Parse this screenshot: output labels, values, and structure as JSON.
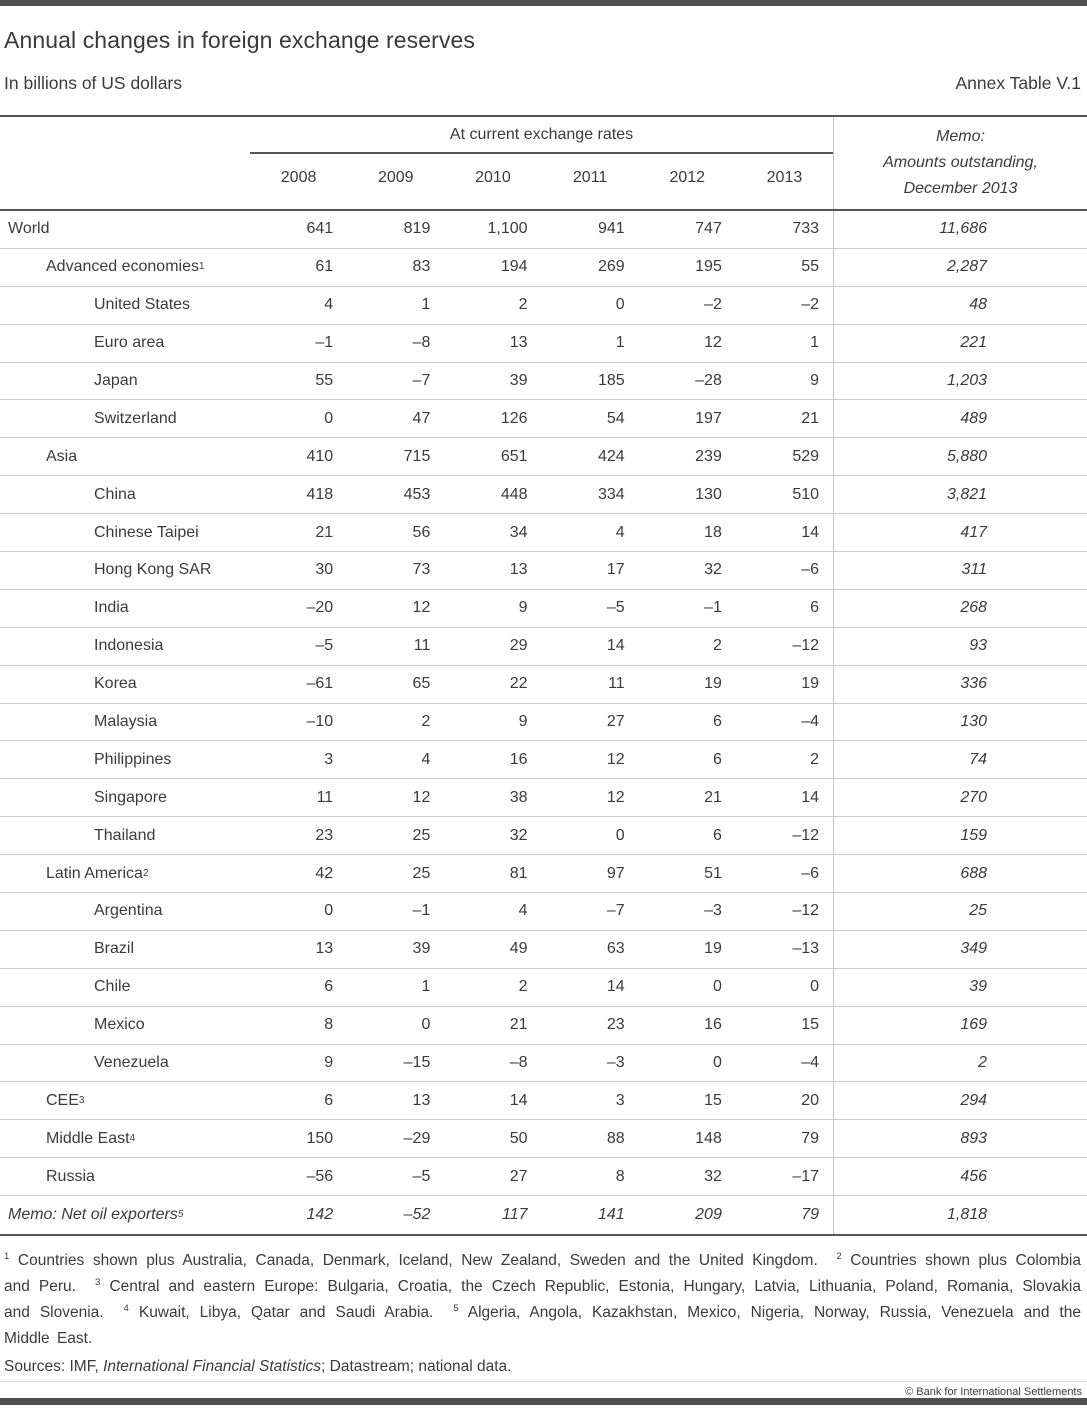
{
  "page": {
    "title": "Annual changes in foreign exchange reserves",
    "subtitle": "In billions of US dollars",
    "table_ref": "Annex Table V.1",
    "copyright": "© Bank for International Settlements"
  },
  "colors": {
    "text": "#3b3b3b",
    "rule_dark": "#565656",
    "rule_light": "#cbcbcb",
    "divider": "#c3c3c3",
    "bar": "#4f4f4f"
  },
  "table": {
    "spanner": "At current exchange rates",
    "years": [
      "2008",
      "2009",
      "2010",
      "2011",
      "2012",
      "2013"
    ],
    "memo_header": [
      "Memo:",
      "Amounts outstanding,",
      "December 2013"
    ],
    "rows": [
      {
        "label": "World",
        "sup": "",
        "indent": 0,
        "italic": false,
        "values": [
          "641",
          "819",
          "1,100",
          "941",
          "747",
          "733"
        ],
        "memo": "11,686"
      },
      {
        "label": "Advanced economies",
        "sup": "1",
        "indent": 1,
        "italic": false,
        "values": [
          "61",
          "83",
          "194",
          "269",
          "195",
          "55"
        ],
        "memo": "2,287"
      },
      {
        "label": "United States",
        "sup": "",
        "indent": 2,
        "italic": false,
        "values": [
          "4",
          "1",
          "2",
          "0",
          "–2",
          "–2"
        ],
        "memo": "48"
      },
      {
        "label": "Euro area",
        "sup": "",
        "indent": 2,
        "italic": false,
        "values": [
          "–1",
          "–8",
          "13",
          "1",
          "12",
          "1"
        ],
        "memo": "221"
      },
      {
        "label": "Japan",
        "sup": "",
        "indent": 2,
        "italic": false,
        "values": [
          "55",
          "–7",
          "39",
          "185",
          "–28",
          "9"
        ],
        "memo": "1,203"
      },
      {
        "label": "Switzerland",
        "sup": "",
        "indent": 2,
        "italic": false,
        "values": [
          "0",
          "47",
          "126",
          "54",
          "197",
          "21"
        ],
        "memo": "489"
      },
      {
        "label": "Asia",
        "sup": "",
        "indent": 1,
        "italic": false,
        "values": [
          "410",
          "715",
          "651",
          "424",
          "239",
          "529"
        ],
        "memo": "5,880"
      },
      {
        "label": "China",
        "sup": "",
        "indent": 2,
        "italic": false,
        "values": [
          "418",
          "453",
          "448",
          "334",
          "130",
          "510"
        ],
        "memo": "3,821"
      },
      {
        "label": "Chinese Taipei",
        "sup": "",
        "indent": 2,
        "italic": false,
        "values": [
          "21",
          "56",
          "34",
          "4",
          "18",
          "14"
        ],
        "memo": "417"
      },
      {
        "label": "Hong Kong SAR",
        "sup": "",
        "indent": 2,
        "italic": false,
        "values": [
          "30",
          "73",
          "13",
          "17",
          "32",
          "–6"
        ],
        "memo": "311"
      },
      {
        "label": "India",
        "sup": "",
        "indent": 2,
        "italic": false,
        "values": [
          "–20",
          "12",
          "9",
          "–5",
          "–1",
          "6"
        ],
        "memo": "268"
      },
      {
        "label": "Indonesia",
        "sup": "",
        "indent": 2,
        "italic": false,
        "values": [
          "–5",
          "11",
          "29",
          "14",
          "2",
          "–12"
        ],
        "memo": "93"
      },
      {
        "label": "Korea",
        "sup": "",
        "indent": 2,
        "italic": false,
        "values": [
          "–61",
          "65",
          "22",
          "11",
          "19",
          "19"
        ],
        "memo": "336"
      },
      {
        "label": "Malaysia",
        "sup": "",
        "indent": 2,
        "italic": false,
        "values": [
          "–10",
          "2",
          "9",
          "27",
          "6",
          "–4"
        ],
        "memo": "130"
      },
      {
        "label": "Philippines",
        "sup": "",
        "indent": 2,
        "italic": false,
        "values": [
          "3",
          "4",
          "16",
          "12",
          "6",
          "2"
        ],
        "memo": "74"
      },
      {
        "label": "Singapore",
        "sup": "",
        "indent": 2,
        "italic": false,
        "values": [
          "11",
          "12",
          "38",
          "12",
          "21",
          "14"
        ],
        "memo": "270"
      },
      {
        "label": "Thailand",
        "sup": "",
        "indent": 2,
        "italic": false,
        "values": [
          "23",
          "25",
          "32",
          "0",
          "6",
          "–12"
        ],
        "memo": "159"
      },
      {
        "label": "Latin America",
        "sup": "2",
        "indent": 1,
        "italic": false,
        "values": [
          "42",
          "25",
          "81",
          "97",
          "51",
          "–6"
        ],
        "memo": "688"
      },
      {
        "label": "Argentina",
        "sup": "",
        "indent": 2,
        "italic": false,
        "values": [
          "0",
          "–1",
          "4",
          "–7",
          "–3",
          "–12"
        ],
        "memo": "25"
      },
      {
        "label": "Brazil",
        "sup": "",
        "indent": 2,
        "italic": false,
        "values": [
          "13",
          "39",
          "49",
          "63",
          "19",
          "–13"
        ],
        "memo": "349"
      },
      {
        "label": "Chile",
        "sup": "",
        "indent": 2,
        "italic": false,
        "values": [
          "6",
          "1",
          "2",
          "14",
          "0",
          "0"
        ],
        "memo": "39"
      },
      {
        "label": "Mexico",
        "sup": "",
        "indent": 2,
        "italic": false,
        "values": [
          "8",
          "0",
          "21",
          "23",
          "16",
          "15"
        ],
        "memo": "169"
      },
      {
        "label": "Venezuela",
        "sup": "",
        "indent": 2,
        "italic": false,
        "values": [
          "9",
          "–15",
          "–8",
          "–3",
          "0",
          "–4"
        ],
        "memo": "2"
      },
      {
        "label": "CEE",
        "sup": "3",
        "indent": 1,
        "italic": false,
        "values": [
          "6",
          "13",
          "14",
          "3",
          "15",
          "20"
        ],
        "memo": "294"
      },
      {
        "label": "Middle East",
        "sup": "4",
        "indent": 1,
        "italic": false,
        "values": [
          "150",
          "–29",
          "50",
          "88",
          "148",
          "79"
        ],
        "memo": "893"
      },
      {
        "label": "Russia",
        "sup": "",
        "indent": 1,
        "italic": false,
        "values": [
          "–56",
          "–5",
          "27",
          "8",
          "32",
          "–17"
        ],
        "memo": "456"
      },
      {
        "label": "Memo: Net oil exporters",
        "sup": "5",
        "indent": 0,
        "italic": true,
        "values": [
          "142",
          "–52",
          "117",
          "141",
          "209",
          "79"
        ],
        "memo": "1,818"
      }
    ]
  },
  "footnotes": [
    {
      "sup": "1",
      "text": "Countries shown plus Australia, Canada, Denmark, Iceland, New Zealand, Sweden and the United Kingdom."
    },
    {
      "sup": "2",
      "text": "Countries shown plus Colombia and Peru."
    },
    {
      "sup": "3",
      "text": "Central and eastern Europe: Bulgaria, Croatia, the Czech Republic, Estonia, Hungary, Latvia, Lithuania, Poland, Romania, Slovakia and Slovenia."
    },
    {
      "sup": "4",
      "text": "Kuwait, Libya, Qatar and Saudi Arabia."
    },
    {
      "sup": "5",
      "text": "Algeria, Angola, Kazakhstan, Mexico, Nigeria, Norway, Russia, Venezuela and the Middle East."
    }
  ],
  "sources": {
    "prefix": "Sources: IMF, ",
    "italic_part": "International Financial Statistics",
    "suffix": "; Datastream; national data."
  }
}
